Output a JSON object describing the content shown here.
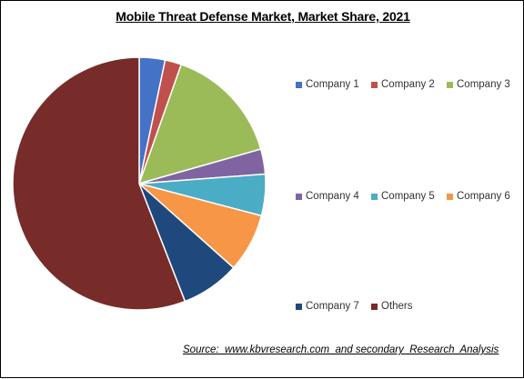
{
  "chart_data": {
    "type": "pie",
    "title": "Mobile Threat Defense Market, Market Share, 2021",
    "slices": [
      {
        "label": "Company 1",
        "value": 3.3,
        "color": "#4472C4"
      },
      {
        "label": "Company 2",
        "value": 2.1,
        "color": "#C0504D"
      },
      {
        "label": "Company 3",
        "value": 15.2,
        "color": "#9BBB59"
      },
      {
        "label": "Company 4",
        "value": 3.2,
        "color": "#8064A2"
      },
      {
        "label": "Company 5",
        "value": 5.3,
        "color": "#4BACC6"
      },
      {
        "label": "Company 6",
        "value": 7.5,
        "color": "#F79646"
      },
      {
        "label": "Company 7",
        "value": 7.5,
        "color": "#1F497D"
      },
      {
        "label": "Others",
        "value": 55.9,
        "color": "#772C2A"
      }
    ],
    "legend_position": "right",
    "source": "Source:  www.kbvresearch.com  and secondary  Research  Analysis"
  }
}
